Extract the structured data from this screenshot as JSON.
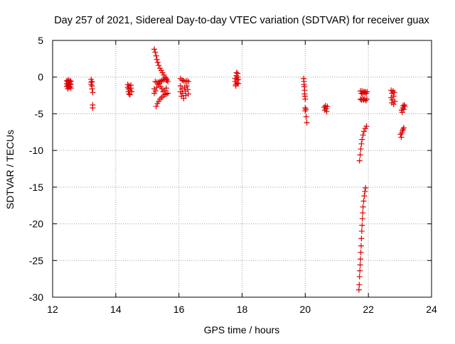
{
  "chart_data": {
    "type": "scatter",
    "title": "Day 257 of 2021, Sidereal Day-to-day VTEC variation (SDTVAR) for receiver guax",
    "xlabel": "GPS time / hours",
    "ylabel": "SDTVAR / TECUs",
    "xlim": [
      12,
      24
    ],
    "ylim": [
      -30,
      5
    ],
    "xticks": [
      12,
      14,
      16,
      18,
      20,
      22,
      24
    ],
    "yticks": [
      5,
      0,
      -5,
      -10,
      -15,
      -20,
      -25,
      -30
    ],
    "grid": true,
    "legend": "none",
    "marker": "+",
    "color": "#e00000",
    "series": [
      {
        "name": "SDTVAR",
        "points": [
          [
            12.45,
            -0.5
          ],
          [
            12.45,
            -0.9
          ],
          [
            12.45,
            -1.3
          ],
          [
            12.48,
            -0.6
          ],
          [
            12.48,
            -1.1
          ],
          [
            12.48,
            -1.6
          ],
          [
            12.5,
            -0.4
          ],
          [
            12.5,
            -0.8
          ],
          [
            12.5,
            -1.2
          ],
          [
            12.52,
            -0.7
          ],
          [
            12.52,
            -1.0
          ],
          [
            12.52,
            -1.4
          ],
          [
            12.55,
            -0.5
          ],
          [
            12.55,
            -0.9
          ],
          [
            12.55,
            -1.3
          ],
          [
            12.58,
            -0.6
          ],
          [
            12.58,
            -1.0
          ],
          [
            12.58,
            -1.5
          ],
          [
            13.22,
            -0.3
          ],
          [
            13.22,
            -0.7
          ],
          [
            13.22,
            -1.0
          ],
          [
            13.25,
            -0.6
          ],
          [
            13.25,
            -1.2
          ],
          [
            13.25,
            -1.6
          ],
          [
            13.27,
            -2.1
          ],
          [
            13.27,
            -3.8
          ],
          [
            13.27,
            -4.2
          ],
          [
            14.38,
            -1.0
          ],
          [
            14.38,
            -1.4
          ],
          [
            14.4,
            -1.6
          ],
          [
            14.4,
            -2.0
          ],
          [
            14.42,
            -2.3
          ],
          [
            14.42,
            -1.2
          ],
          [
            14.45,
            -1.8
          ],
          [
            14.45,
            -2.4
          ],
          [
            14.48,
            -1.1
          ],
          [
            14.48,
            -1.5
          ],
          [
            14.5,
            -2.0
          ],
          [
            15.22,
            3.8
          ],
          [
            15.25,
            3.4
          ],
          [
            15.28,
            2.9
          ],
          [
            15.3,
            2.4
          ],
          [
            15.33,
            2.0
          ],
          [
            15.36,
            1.6
          ],
          [
            15.4,
            1.2
          ],
          [
            15.44,
            0.9
          ],
          [
            15.48,
            0.6
          ],
          [
            15.52,
            0.3
          ],
          [
            15.56,
            0.0
          ],
          [
            15.6,
            -0.2
          ],
          [
            15.62,
            -0.4
          ],
          [
            15.25,
            -0.6
          ],
          [
            15.3,
            -0.7
          ],
          [
            15.35,
            -0.7
          ],
          [
            15.4,
            -0.6
          ],
          [
            15.45,
            -0.5
          ],
          [
            15.5,
            -0.4
          ],
          [
            15.55,
            -0.3
          ],
          [
            15.6,
            -0.4
          ],
          [
            15.65,
            -0.6
          ],
          [
            15.22,
            -1.6
          ],
          [
            15.22,
            -2.2
          ],
          [
            15.26,
            -1.9
          ],
          [
            15.3,
            -1.4
          ],
          [
            15.34,
            -1.0
          ],
          [
            15.38,
            -0.9
          ],
          [
            15.42,
            -1.3
          ],
          [
            15.46,
            -1.6
          ],
          [
            15.5,
            -2.0
          ],
          [
            15.55,
            -1.8
          ],
          [
            15.6,
            -1.5
          ],
          [
            15.28,
            -4.0
          ],
          [
            15.32,
            -3.6
          ],
          [
            15.36,
            -3.3
          ],
          [
            15.4,
            -3.0
          ],
          [
            15.45,
            -2.8
          ],
          [
            15.5,
            -2.6
          ],
          [
            15.55,
            -2.4
          ],
          [
            15.6,
            -2.3
          ],
          [
            15.65,
            -2.2
          ],
          [
            16.05,
            -0.2
          ],
          [
            16.1,
            -0.4
          ],
          [
            16.15,
            -0.5
          ],
          [
            16.2,
            -0.6
          ],
          [
            16.25,
            -0.5
          ],
          [
            16.3,
            -0.6
          ],
          [
            16.05,
            -1.2
          ],
          [
            16.05,
            -2.0
          ],
          [
            16.08,
            -2.6
          ],
          [
            16.1,
            -1.6
          ],
          [
            16.12,
            -2.2
          ],
          [
            16.15,
            -2.9
          ],
          [
            16.18,
            -1.4
          ],
          [
            16.2,
            -1.9
          ],
          [
            16.22,
            -2.5
          ],
          [
            16.25,
            -1.2
          ],
          [
            16.28,
            -1.7
          ],
          [
            16.3,
            -2.3
          ],
          [
            17.78,
            -0.2
          ],
          [
            17.78,
            -0.6
          ],
          [
            17.8,
            -1.0
          ],
          [
            17.8,
            -1.2
          ],
          [
            17.82,
            0.6
          ],
          [
            17.82,
            0.2
          ],
          [
            17.84,
            -0.4
          ],
          [
            17.84,
            -0.8
          ],
          [
            17.86,
            0.5
          ],
          [
            17.86,
            0.0
          ],
          [
            17.88,
            -0.3
          ],
          [
            17.88,
            -0.9
          ],
          [
            19.95,
            -0.2
          ],
          [
            19.96,
            -0.6
          ],
          [
            19.96,
            -1.0
          ],
          [
            19.97,
            -1.3
          ],
          [
            19.98,
            -1.8
          ],
          [
            19.98,
            -2.3
          ],
          [
            19.99,
            -2.6
          ],
          [
            20.0,
            -3.0
          ],
          [
            20.0,
            -4.2
          ],
          [
            20.0,
            -4.6
          ],
          [
            20.02,
            -4.4
          ],
          [
            20.03,
            -5.4
          ],
          [
            20.05,
            -6.2
          ],
          [
            20.6,
            -4.1
          ],
          [
            20.62,
            -4.5
          ],
          [
            20.64,
            -3.9
          ],
          [
            20.66,
            -4.3
          ],
          [
            20.68,
            -4.7
          ],
          [
            20.7,
            -4.0
          ],
          [
            21.75,
            -1.9
          ],
          [
            21.78,
            -2.2
          ],
          [
            21.8,
            -1.9
          ],
          [
            21.82,
            -2.3
          ],
          [
            21.85,
            -2.0
          ],
          [
            21.88,
            -2.1
          ],
          [
            21.9,
            -2.0
          ],
          [
            21.93,
            -2.2
          ],
          [
            21.96,
            -2.0
          ],
          [
            21.75,
            -3.0
          ],
          [
            21.78,
            -3.1
          ],
          [
            21.82,
            -3.0
          ],
          [
            21.85,
            -3.1
          ],
          [
            21.88,
            -3.0
          ],
          [
            21.92,
            -3.2
          ],
          [
            21.95,
            -3.0
          ],
          [
            21.72,
            -11.4
          ],
          [
            21.74,
            -10.6
          ],
          [
            21.76,
            -9.8
          ],
          [
            21.78,
            -9.1
          ],
          [
            21.8,
            -8.5
          ],
          [
            21.83,
            -7.9
          ],
          [
            21.86,
            -7.4
          ],
          [
            21.9,
            -7.0
          ],
          [
            21.94,
            -6.7
          ],
          [
            21.7,
            -29.0
          ],
          [
            21.71,
            -28.3
          ],
          [
            21.72,
            -27.2
          ],
          [
            21.73,
            -26.4
          ],
          [
            21.74,
            -25.6
          ],
          [
            21.75,
            -24.8
          ],
          [
            21.76,
            -23.9
          ],
          [
            21.77,
            -23.0
          ],
          [
            21.78,
            -22.0
          ],
          [
            21.79,
            -21.0
          ],
          [
            21.8,
            -20.2
          ],
          [
            21.81,
            -19.3
          ],
          [
            21.82,
            -18.5
          ],
          [
            21.83,
            -17.7
          ],
          [
            21.85,
            -16.9
          ],
          [
            21.87,
            -16.2
          ],
          [
            21.89,
            -15.6
          ],
          [
            21.91,
            -15.1
          ],
          [
            22.72,
            -1.8
          ],
          [
            22.72,
            -2.8
          ],
          [
            22.74,
            -3.5
          ],
          [
            22.75,
            -2.2
          ],
          [
            22.76,
            -3.1
          ],
          [
            22.78,
            -1.9
          ],
          [
            22.8,
            -2.6
          ],
          [
            22.8,
            -3.7
          ],
          [
            22.82,
            -2.1
          ],
          [
            22.84,
            -3.3
          ],
          [
            23.05,
            -4.5
          ],
          [
            23.07,
            -4.8
          ],
          [
            23.09,
            -4.2
          ],
          [
            23.1,
            -3.9
          ],
          [
            23.12,
            -4.4
          ],
          [
            23.14,
            -3.8
          ],
          [
            23.15,
            -4.0
          ],
          [
            23.02,
            -7.8
          ],
          [
            23.04,
            -8.2
          ],
          [
            23.06,
            -7.6
          ],
          [
            23.08,
            -7.3
          ],
          [
            23.1,
            -7.1
          ],
          [
            23.12,
            -6.9
          ]
        ]
      }
    ]
  }
}
